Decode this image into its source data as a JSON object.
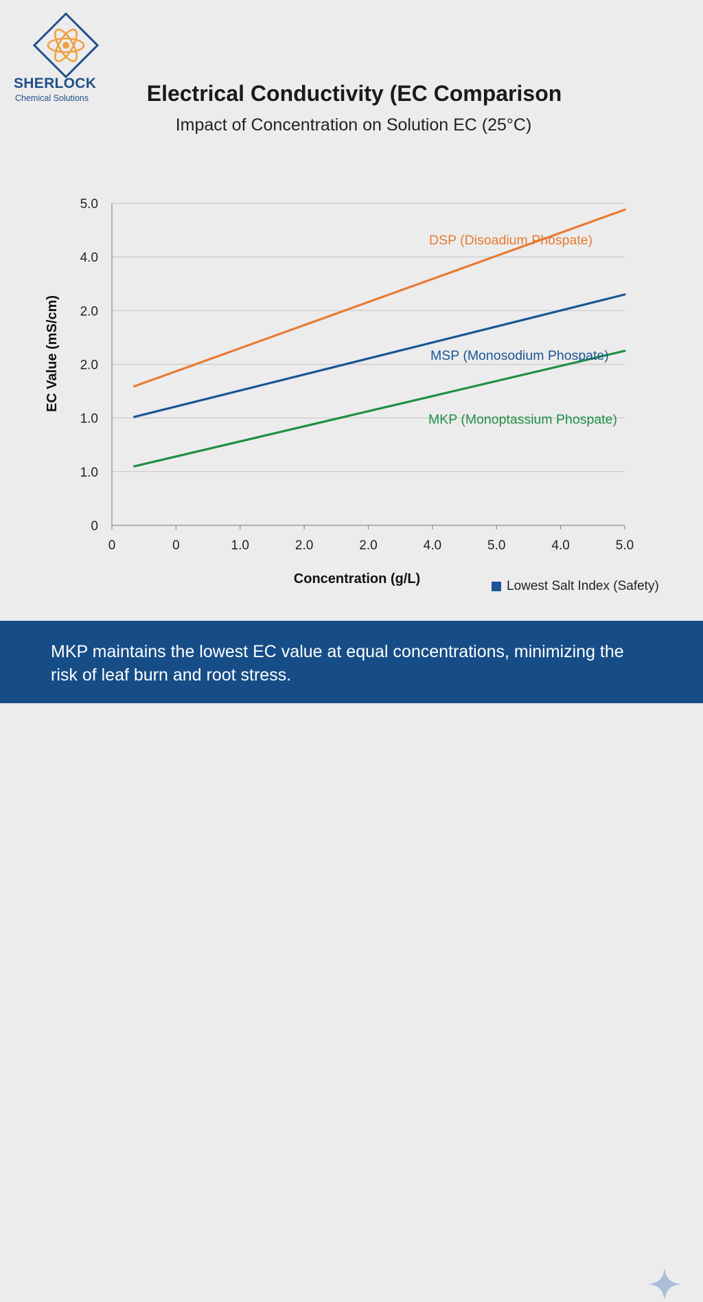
{
  "brand": {
    "name": "SHERLOCK",
    "tagline": "Chemical Solutions",
    "logo_icon": "atom-diamond-logo",
    "colors": {
      "primary": "#1f4f8a",
      "accent": "#f0a040"
    }
  },
  "footer": {
    "text": "MKP maintains the lowest EC value at equal concentrations, minimizing the risk of leaf burn and root stress.",
    "icon": "sparkle-icon",
    "background": "#164d87"
  },
  "legend": {
    "label": "Lowest Salt Index (Safety)",
    "color": "#1a5596"
  },
  "chart_data": {
    "type": "line",
    "title": "Electrical Conductivity (EC Comparison",
    "subtitle": "Impact of Concentration on Solution EC (25°C)",
    "xlabel": "Concentration (g/L)",
    "ylabel": "EC Value (mS/cm)",
    "x_tick_labels": [
      "0",
      "0",
      "1.0",
      "2.0",
      "2.0",
      "4.0",
      "5.0",
      "4.0",
      "5.0"
    ],
    "y_tick_labels": [
      "0",
      "1.0",
      "1.0",
      "2.0",
      "2.0",
      "4.0",
      "5.0"
    ],
    "xlim": [
      0,
      8
    ],
    "ylim": [
      0,
      6
    ],
    "grid": true,
    "series": [
      {
        "name": "DSP (Disoadium Phospate)",
        "color": "#e87a32",
        "x": [
          0.35,
          8
        ],
        "y": [
          2.59,
          5.88
        ]
      },
      {
        "name": "MSP (Monosodium Phospate)",
        "color": "#1a5596",
        "x": [
          0.35,
          8
        ],
        "y": [
          2.02,
          4.3
        ]
      },
      {
        "name": "MKP (Monoptassium Phospate)",
        "color": "#1f8f45",
        "x": [
          0.35,
          8
        ],
        "y": [
          1.1,
          3.25
        ]
      }
    ]
  }
}
